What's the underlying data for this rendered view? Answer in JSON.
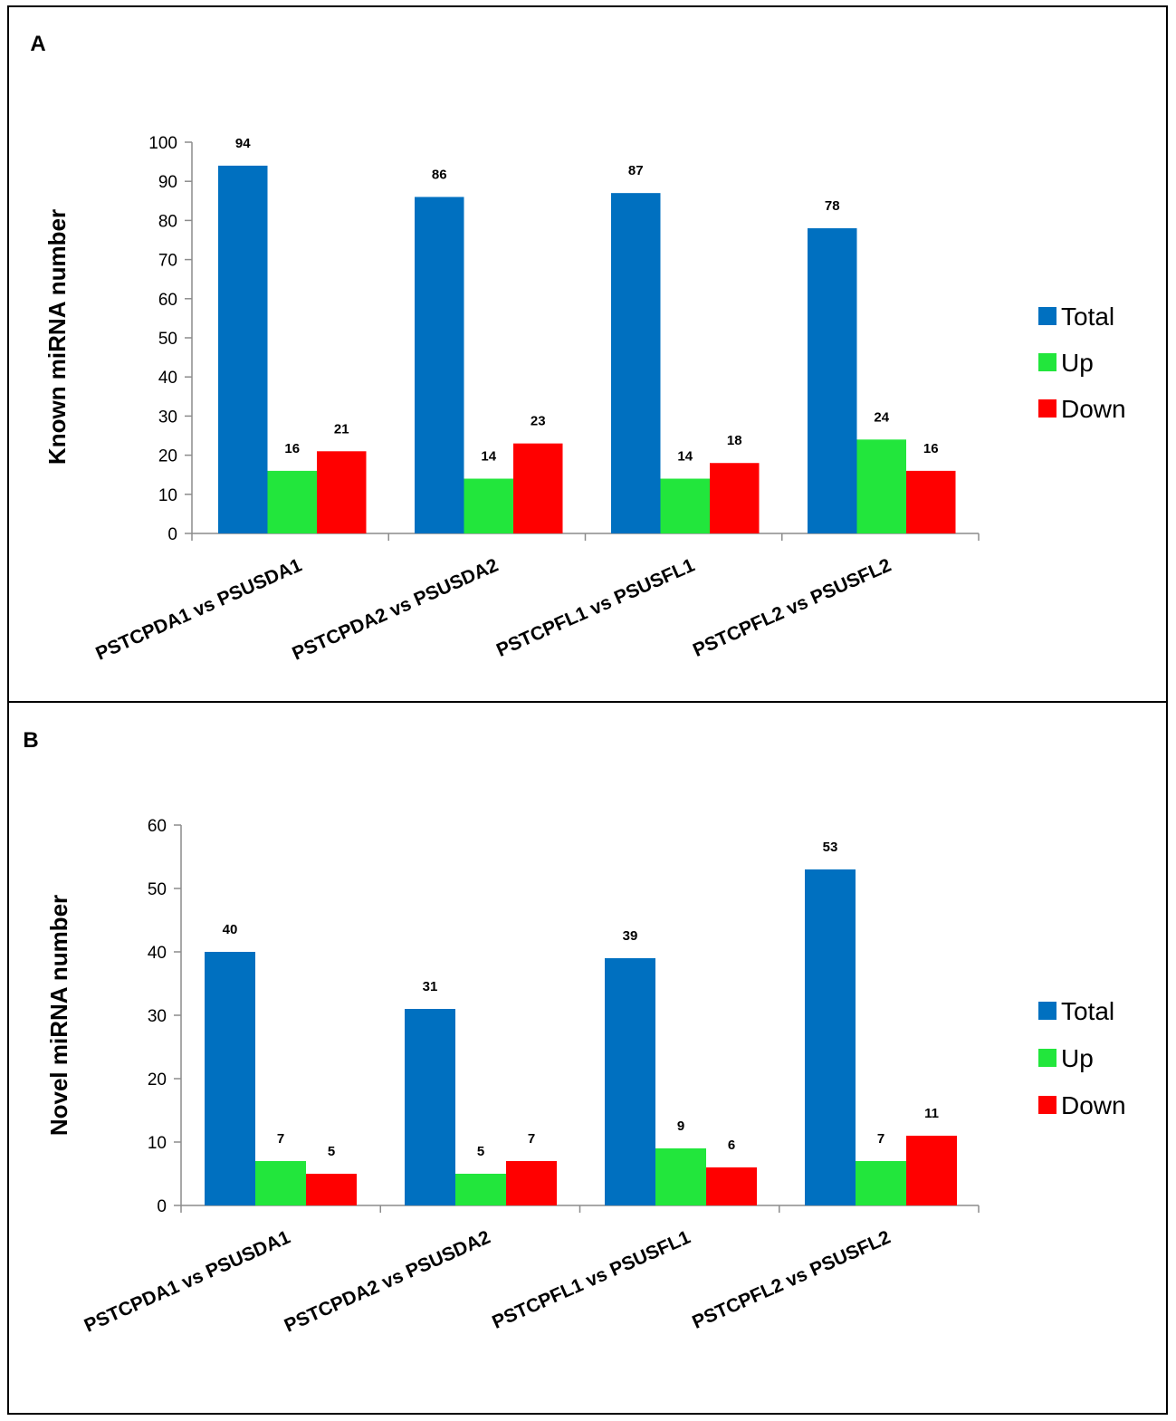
{
  "chart_data": [
    {
      "panel": "A",
      "type": "bar",
      "ylabel": "Known miRNA number",
      "xlabel": "",
      "ylim": [
        0,
        100
      ],
      "yticks": [
        0,
        10,
        20,
        30,
        40,
        50,
        60,
        70,
        80,
        90,
        100
      ],
      "categories": [
        "PSTCPDA1 vs PSUSDA1",
        "PSTCPDA2 vs PSUSDA2",
        "PSTCPFL1 vs PSUSFL1",
        "PSTCPFL2 vs PSUSFL2"
      ],
      "series": [
        {
          "name": "Total",
          "color": "#0070C0",
          "values": [
            94,
            86,
            87,
            78
          ]
        },
        {
          "name": "Up",
          "color": "#22E63C",
          "values": [
            16,
            14,
            14,
            24
          ]
        },
        {
          "name": "Down",
          "color": "#FF0000",
          "values": [
            21,
            23,
            18,
            16
          ]
        }
      ],
      "legend_position": "right"
    },
    {
      "panel": "B",
      "type": "bar",
      "ylabel": "Novel miRNA  number",
      "xlabel": "",
      "ylim": [
        0,
        60
      ],
      "yticks": [
        0,
        10,
        20,
        30,
        40,
        50,
        60
      ],
      "categories": [
        "PSTCPDA1 vs PSUSDA1",
        "PSTCPDA2 vs PSUSDA2",
        "PSTCPFL1 vs PSUSFL1",
        "PSTCPFL2 vs PSUSFL2"
      ],
      "series": [
        {
          "name": "Total",
          "color": "#0070C0",
          "values": [
            40,
            31,
            39,
            53
          ]
        },
        {
          "name": "Up",
          "color": "#22E63C",
          "values": [
            7,
            5,
            9,
            7
          ]
        },
        {
          "name": "Down",
          "color": "#FF0000",
          "values": [
            5,
            7,
            6,
            11
          ]
        }
      ],
      "legend_position": "right"
    }
  ]
}
